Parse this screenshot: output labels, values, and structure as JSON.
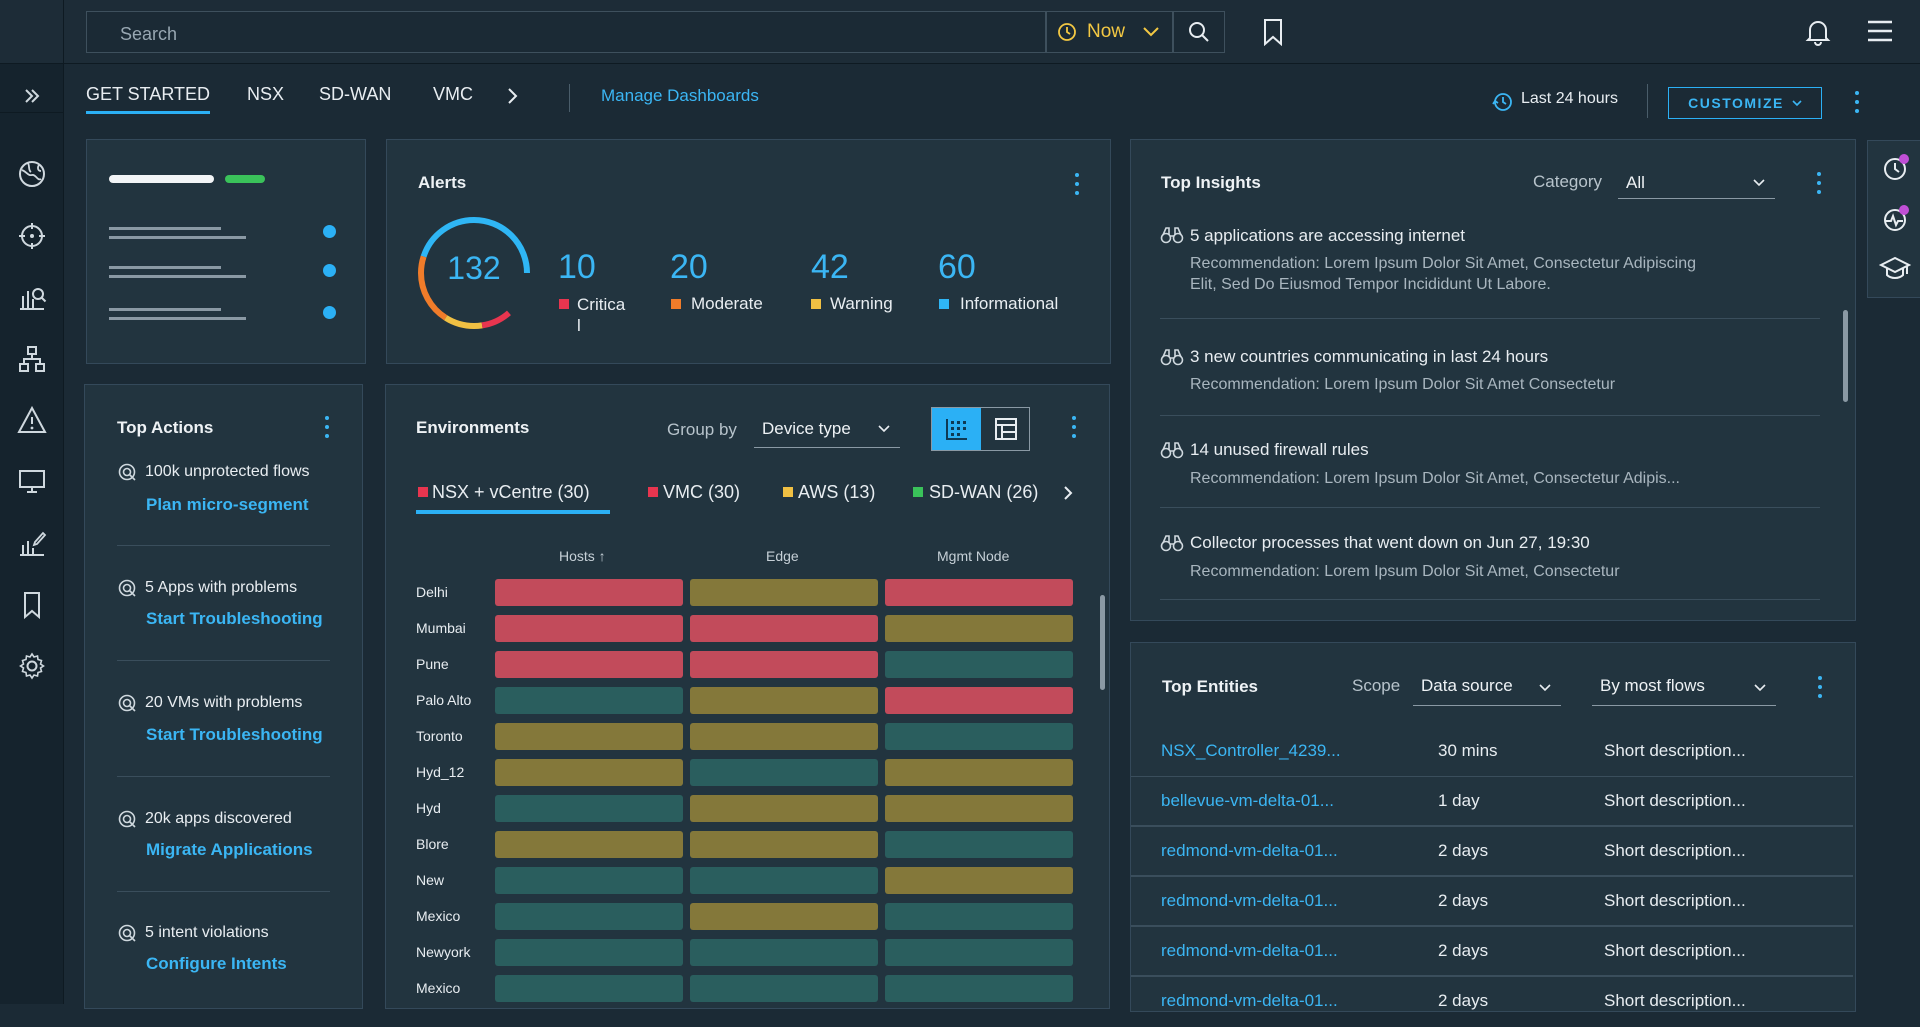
{
  "header": {
    "search_placeholder": "Search",
    "time_label": "Now"
  },
  "tabs": [
    {
      "label": "GET STARTED"
    },
    {
      "label": "NSX"
    },
    {
      "label": "SD-WAN"
    },
    {
      "label": "VMC"
    }
  ],
  "manage_dashboards": "Manage Dashboards",
  "time_range": "Last 24 hours",
  "customize_label": "CUSTOMIZE",
  "alerts": {
    "title": "Alerts",
    "total": "132",
    "items": [
      {
        "count": "10",
        "label_line1": "Critica",
        "label_line2": "l",
        "color": "#e8354f"
      },
      {
        "count": "20",
        "label": "Moderate",
        "color": "#f07c2a"
      },
      {
        "count": "42",
        "label": "Warning",
        "color": "#f0c043"
      },
      {
        "count": "60",
        "label": "Informational",
        "color": "#2fb6f5"
      }
    ]
  },
  "top_actions": {
    "title": "Top Actions",
    "items": [
      {
        "text": "100k unprotected flows",
        "link": "Plan micro-segment"
      },
      {
        "text": "5 Apps with problems",
        "link": "Start Troubleshooting"
      },
      {
        "text": "20 VMs with problems",
        "link": "Start Troubleshooting"
      },
      {
        "text": "20k apps discovered",
        "link": "Migrate Applications"
      },
      {
        "text": "5 intent violations",
        "link": "Configure Intents"
      }
    ]
  },
  "environments": {
    "title": "Environments",
    "group_by_label": "Group by",
    "group_by_value": "Device type",
    "tabs": [
      {
        "label": "NSX + vCentre (30)",
        "color": "#e8354f"
      },
      {
        "label": "VMC (30)",
        "color": "#e8354f"
      },
      {
        "label": "AWS (13)",
        "color": "#f0c043"
      },
      {
        "label": "SD-WAN (26)",
        "color": "#3ac25a"
      }
    ],
    "columns": [
      "Hosts ↑",
      "Edge",
      "Mgmt Node"
    ],
    "rows": [
      {
        "name": "Delhi",
        "cells": [
          "red",
          "olive",
          "red"
        ]
      },
      {
        "name": "Mumbai",
        "cells": [
          "red",
          "red",
          "olive"
        ]
      },
      {
        "name": "Pune",
        "cells": [
          "red",
          "red",
          "teal"
        ]
      },
      {
        "name": "Palo Alto",
        "cells": [
          "teal",
          "olive",
          "red"
        ]
      },
      {
        "name": "Toronto",
        "cells": [
          "olive",
          "olive",
          "teal"
        ]
      },
      {
        "name": "Hyd_12",
        "cells": [
          "olive",
          "teal",
          "olive"
        ]
      },
      {
        "name": "Hyd",
        "cells": [
          "teal",
          "olive",
          "olive"
        ]
      },
      {
        "name": "Blore",
        "cells": [
          "olive",
          "olive",
          "teal"
        ]
      },
      {
        "name": "New",
        "cells": [
          "teal",
          "teal",
          "olive"
        ]
      },
      {
        "name": "Mexico",
        "cells": [
          "teal",
          "olive",
          "teal"
        ]
      },
      {
        "name": "Newyork",
        "cells": [
          "teal",
          "teal",
          "teal"
        ]
      },
      {
        "name": "Mexico",
        "cells": [
          "teal",
          "teal",
          "teal"
        ]
      }
    ]
  },
  "top_insights": {
    "title": "Top Insights",
    "category_label": "Category",
    "category_value": "All",
    "items": [
      {
        "title": "5 applications are accessing internet",
        "rec_line1": "Recommendation: Lorem Ipsum Dolor Sit Amet, Consectetur Adipiscing",
        "rec_line2": "Elit, Sed Do Eiusmod Tempor Incididunt Ut Labore."
      },
      {
        "title": "3 new countries communicating in last 24 hours",
        "rec_line1": "Recommendation: Lorem Ipsum Dolor Sit Amet Consectetur"
      },
      {
        "title": "14 unused firewall rules",
        "rec_line1": "Recommendation: Lorem Ipsum Dolor Sit Amet, Consectetur Adipis..."
      },
      {
        "title": "Collector processes that went down on Jun 27, 19:30",
        "rec_line1": "Recommendation: Lorem Ipsum Dolor Sit Amet, Consectetur"
      }
    ]
  },
  "top_entities": {
    "title": "Top Entities",
    "scope_label": "Scope",
    "scope_value": "Data source",
    "sort_value": "By most flows",
    "rows": [
      {
        "name": "NSX_Controller_4239...",
        "time": "30 mins",
        "desc": "Short description..."
      },
      {
        "name": "bellevue-vm-delta-01...",
        "time": "1 day",
        "desc": "Short description..."
      },
      {
        "name": "redmond-vm-delta-01...",
        "time": "2 days",
        "desc": "Short description..."
      },
      {
        "name": "redmond-vm-delta-01...",
        "time": "2 days",
        "desc": "Short description..."
      },
      {
        "name": "redmond-vm-delta-01...",
        "time": "2 days",
        "desc": "Short description..."
      },
      {
        "name": "redmond-vm-delta-01...",
        "time": "2 days",
        "desc": "Short description..."
      }
    ]
  },
  "colors": {
    "accent": "#2bb0f5",
    "cell_red": "#c24b5b",
    "cell_olive": "#84783a",
    "cell_teal": "#2a5e5e"
  }
}
